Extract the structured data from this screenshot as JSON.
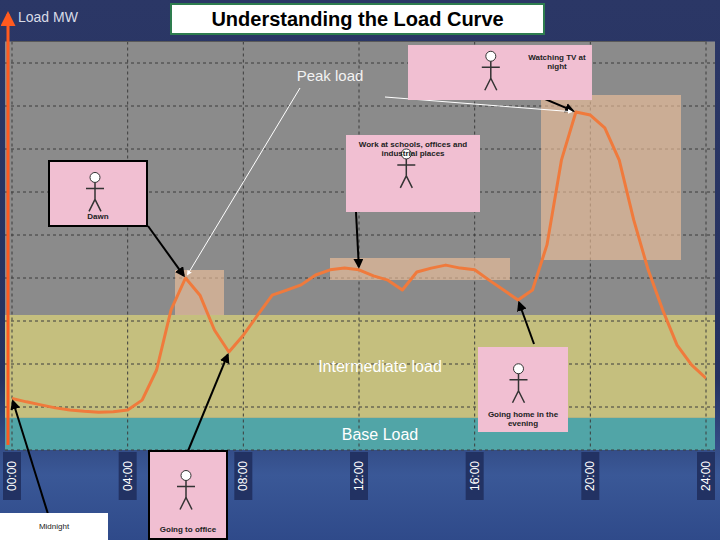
{
  "chart_data": {
    "type": "line",
    "title": "Understanding the Load Curve",
    "y_label": "Load MW",
    "x": [
      0,
      0.5,
      1,
      1.5,
      2,
      2.5,
      3,
      3.5,
      4,
      4.5,
      5,
      5.5,
      6,
      6.5,
      7,
      7.5,
      8,
      8.5,
      9,
      9.5,
      10,
      10.5,
      11,
      11.5,
      12,
      12.5,
      13,
      13.5,
      14,
      14.5,
      15,
      15.5,
      16,
      16.5,
      17,
      17.5,
      18,
      18.5,
      19,
      19.5,
      20,
      20.5,
      21,
      21.5,
      22,
      22.5,
      23,
      23.5,
      24
    ],
    "values": [
      12,
      11.2,
      10.5,
      9.8,
      9.3,
      9,
      8.8,
      8.9,
      9.3,
      11.6,
      18.6,
      32.6,
      40,
      36,
      27.9,
      22.8,
      26.7,
      31.4,
      36,
      37.2,
      38.4,
      40.7,
      41.9,
      42.3,
      41.9,
      40.5,
      39.5,
      37.2,
      41.4,
      42.3,
      43,
      42.3,
      41.9,
      39.5,
      37.2,
      34.9,
      37.2,
      47.7,
      67.4,
      78.6,
      77.9,
      74.9,
      67.4,
      53.5,
      41.9,
      32.6,
      24.4,
      19.8,
      16.7
    ],
    "color": "#f07a3c",
    "xlim": [
      0,
      24
    ],
    "xticks": [
      {
        "value": 0,
        "label": "00:00"
      },
      {
        "value": 4,
        "label": "04:00"
      },
      {
        "value": 8,
        "label": "08:00"
      },
      {
        "value": 12,
        "label": "12:00"
      },
      {
        "value": 16,
        "label": "16:00"
      },
      {
        "value": 20,
        "label": "20:00"
      },
      {
        "value": 24,
        "label": "24:00"
      }
    ],
    "ylim": [
      0,
      95
    ],
    "yticks": [
      0,
      10,
      20,
      30,
      40,
      50,
      60,
      70,
      80,
      90
    ],
    "grid": true,
    "tick_labels": "x",
    "bands": [
      {
        "label": "Base Load",
        "from": 0,
        "to": 7.5,
        "color": "#4aa7aa"
      },
      {
        "label": "Intermediate load",
        "from": 7.5,
        "to": 31.4,
        "color": "#cbc47c"
      }
    ],
    "annotations": [
      {
        "text": "Midnight",
        "x": 0
      },
      {
        "text": "Dawn",
        "x": 6
      },
      {
        "text": "Going to office",
        "x": 7.5
      },
      {
        "text": "Work at schools, offices and industrial places",
        "x": 12
      },
      {
        "text": "Going home in the evening",
        "x": 17.5
      },
      {
        "text": "Watching TV at night",
        "x": 19.5
      },
      {
        "text": "Peak load",
        "x": [
          6,
          19.5
        ]
      }
    ]
  }
}
